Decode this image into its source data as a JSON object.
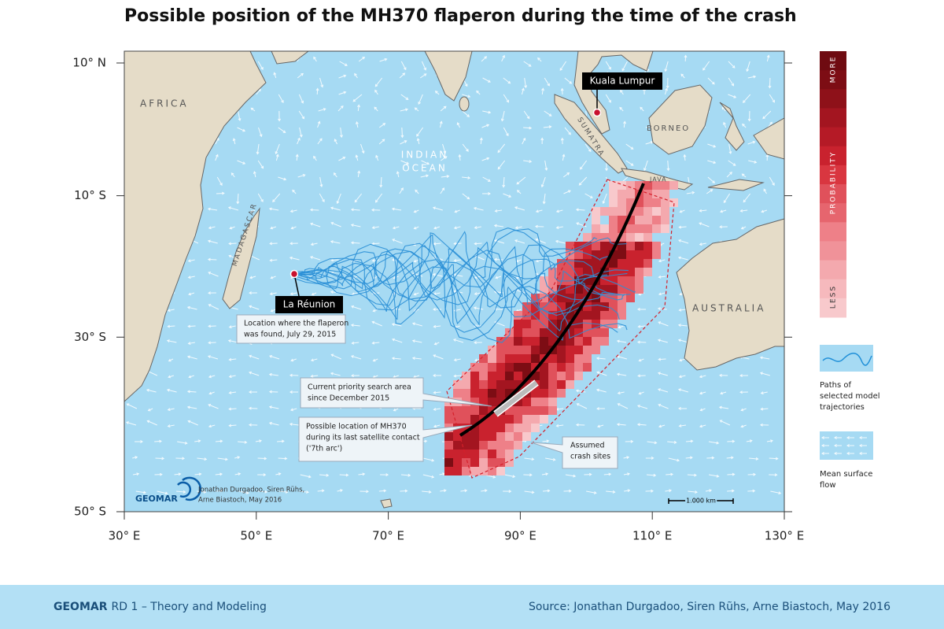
{
  "title": "Possible position of the MH370 flaperon during the time of the crash",
  "map": {
    "lon_range": [
      30,
      130
    ],
    "lat_range": [
      10,
      -50
    ],
    "lon_ticks": [
      {
        "value": 30,
        "label": "30° E"
      },
      {
        "value": 50,
        "label": "50° E"
      },
      {
        "value": 70,
        "label": "70° E"
      },
      {
        "value": 90,
        "label": "90° E"
      },
      {
        "value": 110,
        "label": "110° E"
      },
      {
        "value": 130,
        "label": "130° E"
      }
    ],
    "lat_ticks": [
      {
        "value": 10,
        "label": "10° N"
      },
      {
        "value": -10,
        "label": "10° S"
      },
      {
        "value": -30,
        "label": "30° S"
      },
      {
        "value": -50,
        "label": "50° S"
      }
    ],
    "places": {
      "africa": "AFRICA",
      "indian": "INDIAN",
      "ocean": "OCEAN",
      "madagascar": "MADAGASCAR",
      "sumatra": "SUMATRA",
      "borneo": "BORNEO",
      "java": "JAVA",
      "australia": "AUSTRALIA"
    },
    "kuala_lumpur": "Kuala Lumpur",
    "la_reunion": "La Réunion",
    "flaperon_note": [
      "Location where the flaperon",
      "was found, July 29, 2015"
    ],
    "search_area": [
      "Current priority search area",
      "since December 2015"
    ],
    "last_contact": [
      "Possible location of MH370",
      "during its last satellite contact",
      "('7th arc')"
    ],
    "crash_sites": [
      "Assumed",
      "crash sites"
    ],
    "logo": "GEOMAR",
    "credit": [
      "Jonathan Durgadoo, Siren Rühs,",
      "Arne Biastoch, May 2016"
    ],
    "scale": "1.000 km"
  },
  "legend": {
    "more": "MORE",
    "probability": "PROBABILITY",
    "less": "LESS",
    "trajectories": [
      "Paths of",
      "selected model",
      "trajectories"
    ],
    "flow": [
      "Mean surface",
      "flow"
    ]
  },
  "footer": {
    "org": "GEOMAR",
    "unit": "RD 1 – Theory and Modeling",
    "source": "Source: Jonathan Durgadoo, Siren Rũhs, Arne Biastoch, May 2016"
  }
}
